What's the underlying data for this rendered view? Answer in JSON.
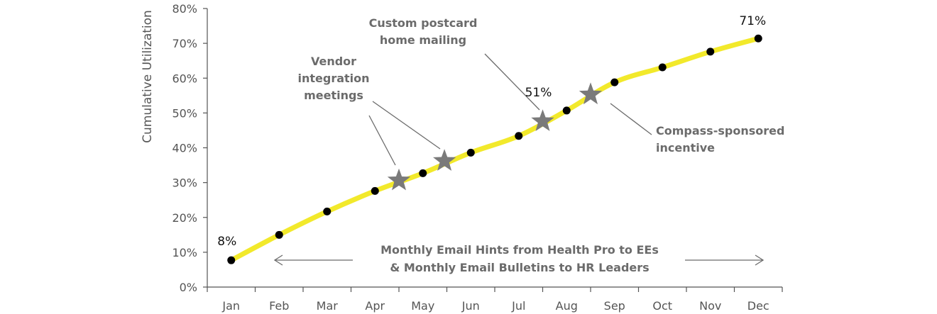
{
  "chart_data": {
    "type": "line",
    "ylabel": "Cumulative Utilization",
    "xlabel": "",
    "ylim": [
      0,
      80
    ],
    "y_ticks": [
      "0%",
      "10%",
      "20%",
      "30%",
      "40%",
      "50%",
      "60%",
      "70%",
      "80%"
    ],
    "categories": [
      "Jan",
      "Feb",
      "Mar",
      "Apr",
      "May",
      "Jun",
      "Jul",
      "Aug",
      "Sep",
      "Oct",
      "Nov",
      "Dec"
    ],
    "series": [
      {
        "points": [
          {
            "x": 0,
            "y": 7.7
          },
          {
            "x": 1,
            "y": 15.0
          },
          {
            "x": 2,
            "y": 21.7
          },
          {
            "x": 3,
            "y": 27.6
          },
          {
            "x": 4,
            "y": 32.7
          },
          {
            "x": 5,
            "y": 38.6
          },
          {
            "x": 6,
            "y": 43.4
          },
          {
            "x": 7,
            "y": 50.7
          },
          {
            "x": 8,
            "y": 58.8
          },
          {
            "x": 9,
            "y": 63.1
          },
          {
            "x": 10,
            "y": 67.6
          },
          {
            "x": 11,
            "y": 71.4
          }
        ]
      }
    ],
    "line_color": "#f2e92b",
    "dot_color": "#000000",
    "star_color": "#7a7a7a",
    "stars": [
      {
        "x": 3.5,
        "y": 30.6
      },
      {
        "x": 4.45,
        "y": 36.2
      },
      {
        "x": 6.5,
        "y": 47.6
      },
      {
        "x": 7.5,
        "y": 55.3
      }
    ],
    "data_labels": [
      {
        "text": "8%",
        "x": 0,
        "y": 7.7
      },
      {
        "text": "51%",
        "x": 6.5,
        "y": 47.6
      },
      {
        "text": "71%",
        "x": 11,
        "y": 71.4
      }
    ],
    "annotations": [
      {
        "lines": [
          "Vendor",
          "integration",
          "meetings"
        ]
      },
      {
        "lines": [
          "Custom postcard",
          "home mailing"
        ]
      },
      {
        "lines": [
          "Compass-sponsored",
          "incentive"
        ]
      },
      {
        "lines": [
          "Monthly Email Hints from Health Pro to EEs",
          "& Monthly Email Bulletins to HR Leaders"
        ]
      }
    ]
  }
}
